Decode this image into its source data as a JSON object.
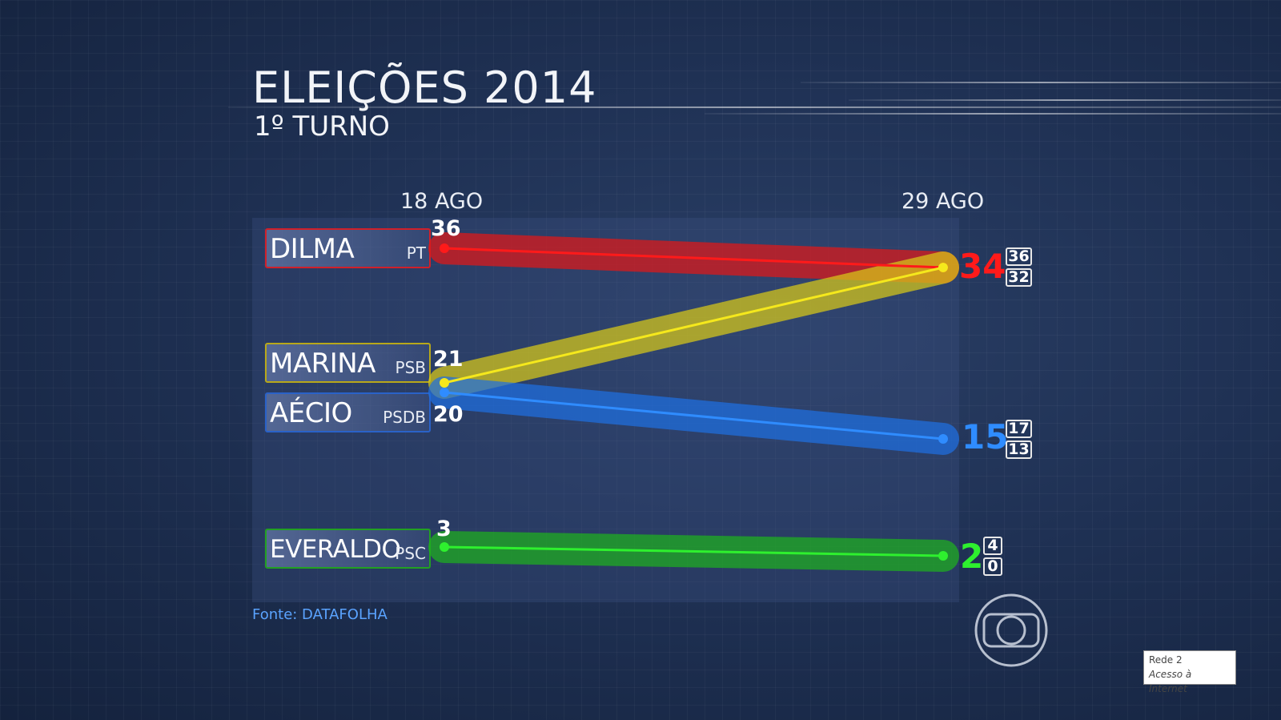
{
  "header": {
    "title": "ELEIÇÕES 2014",
    "subtitle": "1º TURNO"
  },
  "source": "Fonte: DATAFOLHA",
  "watermark": {
    "line1": "Rede  2",
    "line2": "Acesso à Internet"
  },
  "chart_data": {
    "type": "line",
    "title": "ELEIÇÕES 2014",
    "subtitle": "1º TURNO",
    "x": [
      "18 AGO",
      "29 AGO"
    ],
    "series": [
      {
        "name": "DILMA",
        "party": "PT",
        "color": "#ff1a1a",
        "band_color": "#e01818",
        "values": [
          36,
          34
        ],
        "margin": [
          "36",
          "32"
        ],
        "start_label": "36",
        "end_label": "34"
      },
      {
        "name": "MARINA",
        "party": "PSB",
        "color": "#f5e81c",
        "band_color": "#d8c918",
        "values": [
          21,
          34
        ],
        "margin": null,
        "start_label": "21",
        "end_label": null
      },
      {
        "name": "AÉCIO",
        "party": "PSDB",
        "color": "#2f8cff",
        "band_color": "#1f6fe0",
        "values": [
          20,
          15
        ],
        "margin": [
          "17",
          "13"
        ],
        "start_label": "20",
        "end_label": "15"
      },
      {
        "name": "EVERALDO",
        "party": "PSC",
        "color": "#2ef02e",
        "band_color": "#1eb01e",
        "values": [
          3,
          2
        ],
        "margin": [
          "4",
          "0"
        ],
        "start_label": "3",
        "end_label": "2"
      }
    ],
    "source": "Fonte: DATAFOLHA",
    "legend": "left"
  },
  "colors": {
    "background": "#1f3154",
    "source_text": "#5aa3ff",
    "dilma_border": "#d0202a",
    "marina_border": "#b8a81a",
    "aecio_border": "#2a62c8",
    "everaldo_border": "#22a022"
  },
  "icons": {
    "logo": "globo-logo-icon"
  }
}
